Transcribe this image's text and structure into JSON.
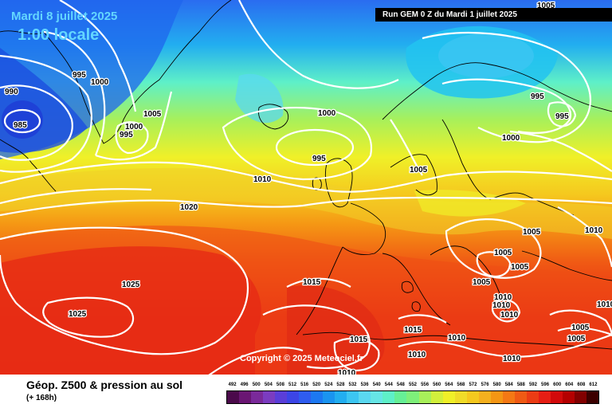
{
  "header": {
    "date_text": "Mardi 8 juillet 2025",
    "time_text": "1:00 locale",
    "run_text": "Run GEM 0 Z du Mardi 1 juillet 2025"
  },
  "copyright": "Copyright © 2025 Meteociel.fr",
  "footer": {
    "title": "Géop. Z500 & pression au sol",
    "subtitle": "(+ 168h)"
  },
  "legend_scale": {
    "labels": [
      "492",
      "496",
      "500",
      "504",
      "508",
      "512",
      "516",
      "520",
      "524",
      "528",
      "532",
      "536",
      "540",
      "544",
      "548",
      "552",
      "556",
      "560",
      "564",
      "568",
      "572",
      "576",
      "580",
      "584",
      "588",
      "592",
      "596",
      "600",
      "604",
      "608",
      "612"
    ],
    "colors": [
      "#4b0a4b",
      "#6a1673",
      "#7a2a9a",
      "#7b3cc0",
      "#5a3ed8",
      "#3c45e6",
      "#2f5cf0",
      "#1c78f2",
      "#1a94f0",
      "#22aef0",
      "#3cc6f2",
      "#5ad8f0",
      "#66e6e6",
      "#5ef0c8",
      "#66f096",
      "#7ef07a",
      "#a8f05a",
      "#d2f03c",
      "#f0f028",
      "#f0dc28",
      "#f5c81e",
      "#f5b01e",
      "#f59614",
      "#f57814",
      "#f05a14",
      "#eb3c14",
      "#e61e14",
      "#d20a0a",
      "#b40000",
      "#820000",
      "#3c0000"
    ]
  },
  "isobars": [
    "985",
    "990",
    "995",
    "1000",
    "995",
    "1000",
    "995",
    "1005",
    "1000",
    "995",
    "1005",
    "1010",
    "1020",
    "1000",
    "995",
    "1005",
    "1000",
    "995",
    "1005",
    "1010",
    "1005",
    "1005",
    "1005",
    "1025",
    "1015",
    "1025",
    "1010",
    "1010",
    "1010",
    "1015",
    "1015",
    "1010",
    "1010",
    "1010",
    "1005",
    "1005",
    "1010",
    "1010"
  ]
}
